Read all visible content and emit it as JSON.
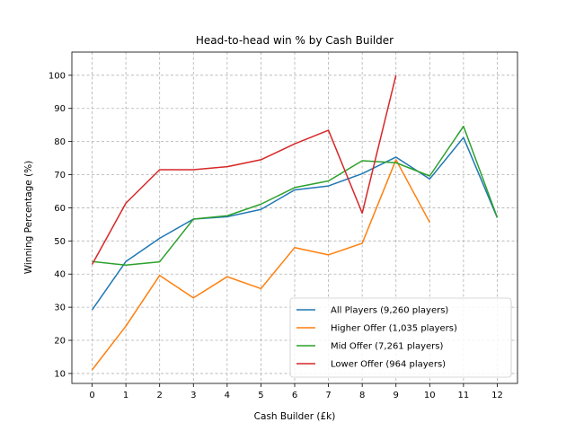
{
  "chart_data": {
    "type": "line",
    "title": "Head-to-head win % by Cash Builder",
    "xlabel": "Cash Builder (£k)",
    "ylabel": "Winning Percentage (%)",
    "xlim": [
      -0.6,
      12.6
    ],
    "ylim": [
      7,
      107
    ],
    "xticks": [
      0,
      1,
      2,
      3,
      4,
      5,
      6,
      7,
      8,
      9,
      10,
      11,
      12
    ],
    "yticks": [
      10,
      20,
      30,
      40,
      50,
      60,
      70,
      80,
      90,
      100
    ],
    "grid": true,
    "legend_position": "lower-right",
    "series": [
      {
        "name": "All Players (9,260 players)",
        "color": "#1f77b4",
        "x": [
          0,
          1,
          2,
          3,
          4,
          5,
          6,
          7,
          8,
          9,
          10,
          11,
          12
        ],
        "y": [
          29.2,
          43.8,
          50.8,
          56.6,
          57.3,
          59.5,
          65.4,
          66.6,
          70.3,
          75.3,
          68.7,
          81.2,
          57.0
        ]
      },
      {
        "name": "Higher Offer (1,035 players)",
        "color": "#ff7f0e",
        "x": [
          0,
          1,
          2,
          3,
          4,
          5,
          6,
          7,
          8,
          9,
          10
        ],
        "y": [
          11.1,
          24.3,
          39.6,
          32.8,
          39.2,
          35.6,
          48.0,
          45.8,
          49.3,
          74.5,
          55.6
        ]
      },
      {
        "name": "Mid Offer (7,261 players)",
        "color": "#2ca02c",
        "x": [
          0,
          1,
          2,
          3,
          4,
          5,
          6,
          7,
          8,
          9,
          10,
          11,
          12
        ],
        "y": [
          43.8,
          42.7,
          43.7,
          56.6,
          57.6,
          61.1,
          66.1,
          68.1,
          74.2,
          73.6,
          69.6,
          84.6,
          57.1
        ]
      },
      {
        "name": "Lower Offer (964 players)",
        "color": "#d62728",
        "x": [
          0,
          1,
          2,
          3,
          4,
          5,
          6,
          7,
          8,
          9
        ],
        "y": [
          42.9,
          61.4,
          71.5,
          71.5,
          72.4,
          74.5,
          79.3,
          83.4,
          58.4,
          100.0
        ]
      }
    ]
  }
}
